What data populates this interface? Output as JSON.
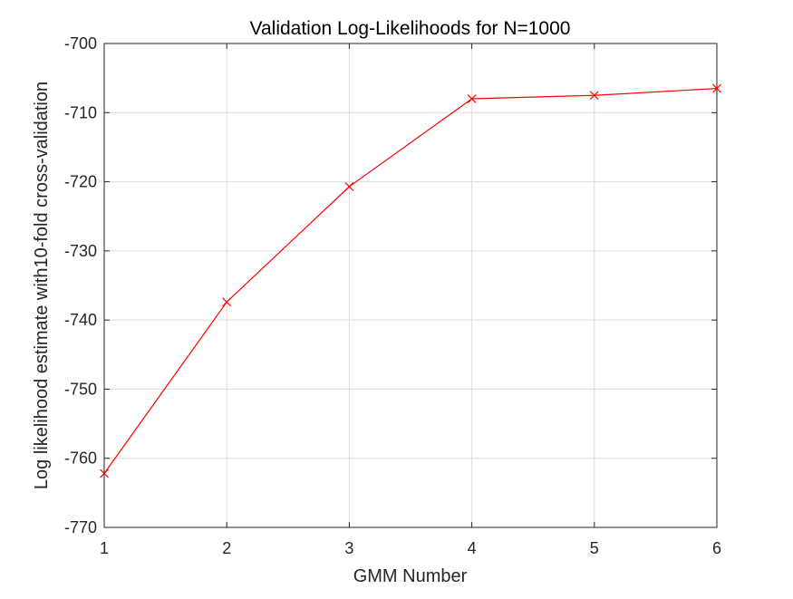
{
  "chart_data": {
    "type": "line",
    "title": "Validation Log-Likelihoods for N=1000",
    "xlabel": "GMM Number",
    "ylabel": "Log likelihood estimate with10-fold cross-validation",
    "xlim": [
      1,
      6
    ],
    "ylim": [
      -770,
      -700
    ],
    "xticks": [
      1,
      2,
      3,
      4,
      5,
      6
    ],
    "yticks": [
      -700,
      -710,
      -720,
      -730,
      -740,
      -750,
      -760,
      -770
    ],
    "grid": true,
    "series": [
      {
        "color": "#ff0000",
        "marker": "x",
        "x": [
          1,
          2,
          3,
          4,
          5,
          6
        ],
        "y": [
          -762.2,
          -737.4,
          -720.7,
          -708.0,
          -707.5,
          -706.5
        ]
      }
    ]
  }
}
